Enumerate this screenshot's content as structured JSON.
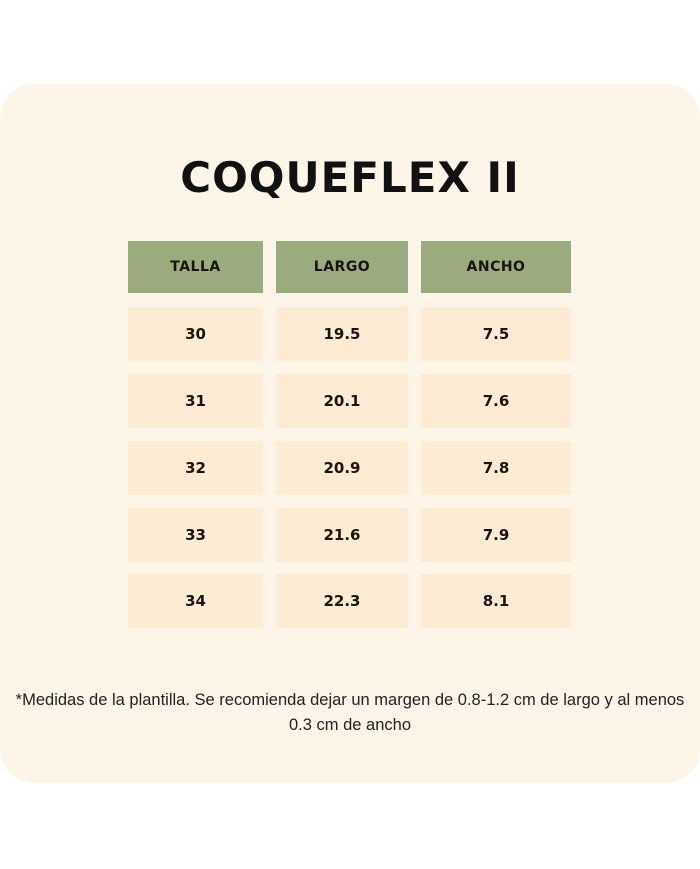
{
  "title": "COQUEFLEX II",
  "table": {
    "headers": [
      "TALLA",
      "LARGO",
      "ANCHO"
    ],
    "rows": [
      [
        "30",
        "19.5",
        "7.5"
      ],
      [
        "31",
        "20.1",
        "7.6"
      ],
      [
        "32",
        "20.9",
        "7.8"
      ],
      [
        "33",
        "21.6",
        "7.9"
      ],
      [
        "34",
        "22.3",
        "8.1"
      ]
    ]
  },
  "note": "*Medidas de la plantilla. Se recomienda dejar un margen de 0.8-1.2 cm de largo y al menos 0.3 cm de ancho",
  "colors": {
    "card": "#fdf5e8",
    "header": "#9aab7e",
    "cell": "#fdebd3"
  }
}
